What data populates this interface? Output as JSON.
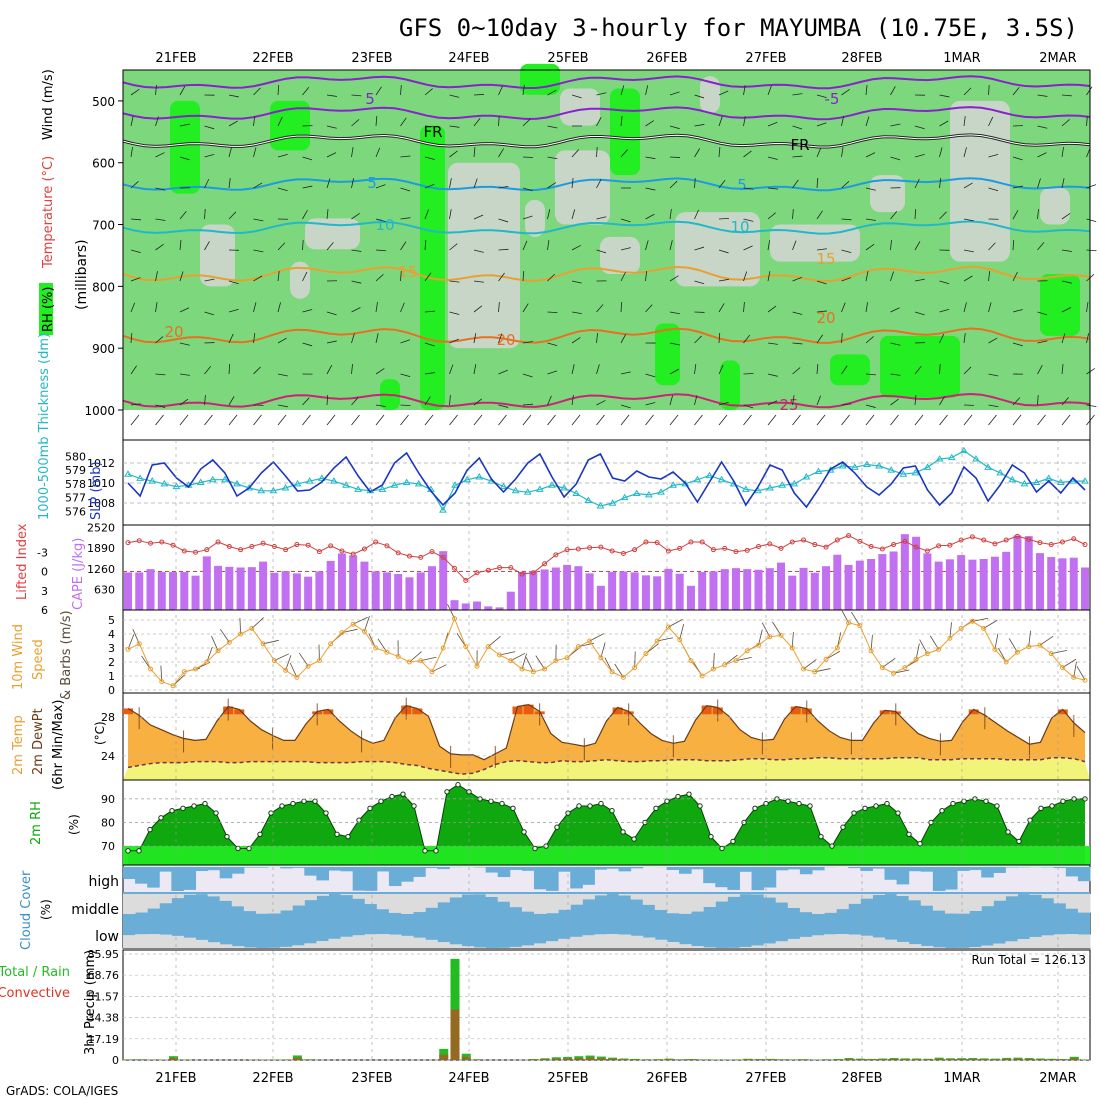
{
  "title": "GFS 0~10day 3-hourly for MAYUMBA (10.75E, 3.5S)",
  "credit": "GrADS: COLA/IGES",
  "dates": [
    "21FEB",
    "22FEB",
    "23FEB",
    "24FEB",
    "25FEB",
    "26FEB",
    "27FEB",
    "28FEB",
    "1MAR",
    "2MAR"
  ],
  "chart_data": [
    {
      "type": "heatmap",
      "panel": "upper-air",
      "ylabel": "(millibars)",
      "legend": [
        "RH (%)",
        "Temperature (°C)",
        "Wind (m/s)"
      ],
      "yticks": [
        500,
        600,
        700,
        800,
        900,
        1000
      ],
      "contour_labels": [
        "5",
        "-5",
        "FR",
        "5",
        "10",
        "15",
        "20",
        "25"
      ]
    },
    {
      "type": "line",
      "panel": "slp-thickness",
      "ylabel_left": "1000-500mb Thickness (dm)",
      "ylabel_right": "SLP (mb)",
      "yticks_thickness": [
        576,
        577,
        578,
        579,
        580
      ],
      "yticks_slp": [
        1008,
        1010,
        1012
      ],
      "slp": [
        1010.0,
        1008.7,
        1011.8,
        1012.0,
        1010.5,
        1009.6,
        1011.4,
        1012.3,
        1011.0,
        1008.7,
        1009.5,
        1011.0,
        1012.1,
        1010.7,
        1009.2,
        1009.3,
        1010.1,
        1011.5,
        1012.6,
        1010.7,
        1009.1,
        1009.8,
        1012.0,
        1013.0,
        1011.0,
        1009.2,
        1007.8,
        1009.0,
        1011.3,
        1012.5,
        1010.4,
        1009.1,
        1010.4,
        1012.0,
        1012.9,
        1010.6,
        1008.6,
        1009.9,
        1012.3,
        1012.9,
        1010.5,
        1010.2,
        1011.2,
        1010.6,
        1010.4,
        1011.1,
        1010.0,
        1008.1,
        1010.1,
        1012.1,
        1010.2,
        1007.8,
        1009.6,
        1011.8,
        1011.3,
        1009.0,
        1007.6,
        1009.4,
        1011.4,
        1012.1,
        1011.0,
        1009.6,
        1008.8,
        1009.9,
        1011.5,
        1011.7,
        1009.3,
        1007.8,
        1009.0,
        1011.6,
        1010.5,
        1008.2,
        1009.8,
        1011.8,
        1011.0,
        1009.1,
        1010.2,
        1009.0,
        1010.5,
        1009.3
      ],
      "thickness": [
        578.7,
        578.4,
        578.2,
        578.0,
        577.8,
        577.9,
        578.1,
        578.3,
        578.3,
        578.0,
        577.7,
        577.5,
        577.5,
        577.7,
        578.0,
        578.2,
        578.4,
        578.2,
        577.9,
        577.6,
        577.5,
        577.6,
        577.9,
        578.1,
        578.0,
        577.6,
        576.1,
        577.9,
        578.3,
        578.5,
        578.2,
        577.8,
        577.5,
        577.4,
        577.6,
        577.9,
        577.7,
        577.3,
        576.8,
        576.4,
        576.6,
        577.0,
        577.3,
        577.2,
        577.4,
        577.9,
        578.0,
        578.3,
        578.6,
        578.3,
        578.0,
        577.6,
        577.5,
        577.7,
        577.9,
        578.0,
        578.5,
        578.9,
        579.0,
        579.3,
        579.2,
        579.4,
        579.3,
        579.0,
        578.7,
        578.8,
        579.2,
        579.8,
        579.9,
        580.4,
        579.8,
        579.2,
        578.8,
        578.3,
        578.0,
        578.1,
        578.4,
        578.1,
        578.2,
        578.2
      ]
    },
    {
      "type": "bar",
      "panel": "cape-lifted-index",
      "ylabel_left": "Lifted Index",
      "ylabel_right": "CAPE (J/kg)",
      "yticks_li": [
        -3,
        0,
        3,
        6
      ],
      "yticks_cape": [
        630,
        1260,
        1890,
        2520
      ],
      "cape": [
        1150,
        1150,
        1250,
        1160,
        1160,
        1160,
        1050,
        1640,
        1350,
        1320,
        1300,
        1310,
        1480,
        1140,
        1190,
        1120,
        1020,
        1180,
        1500,
        1730,
        1670,
        1480,
        1180,
        1150,
        1100,
        1000,
        1150,
        1340,
        1800,
        300,
        200,
        260,
        110,
        80,
        560,
        1160,
        1190,
        1240,
        1300,
        1380,
        1340,
        1120,
        740,
        1160,
        1180,
        1150,
        1060,
        1030,
        1260,
        1110,
        740,
        1160,
        1180,
        1250,
        1280,
        1250,
        1230,
        1280,
        1450,
        1050,
        1290,
        1140,
        1340,
        1690,
        1380,
        1510,
        1560,
        1710,
        1790,
        2320,
        2240,
        1730,
        1480,
        1550,
        1680,
        1540,
        1560,
        1630,
        1780,
        2280,
        2260,
        1740,
        1620,
        1580,
        1600,
        1300
      ],
      "lifted_index": [
        -4.5,
        -4.8,
        -4.4,
        -4.6,
        -4.1,
        -3.2,
        -3.0,
        -3.4,
        -4.6,
        -3.9,
        -3.4,
        -3.9,
        -4.4,
        -3.9,
        -3.4,
        -4.2,
        -4.1,
        -3.1,
        -4.0,
        -3.2,
        -2.7,
        -3.5,
        -4.6,
        -4.0,
        -2.9,
        -2.4,
        -2.2,
        -3.1,
        -2.2,
        -0.5,
        1.4,
        0.2,
        -0.2,
        -0.6,
        -0.6,
        0.4,
        0.2,
        -1.2,
        -2.6,
        -3.4,
        -3.5,
        -3.7,
        -3.8,
        -3.2,
        -2.8,
        -3.4,
        -4.6,
        -4.5,
        -3.2,
        -3.6,
        -4.6,
        -4.6,
        -3.4,
        -3.6,
        -3.1,
        -3.3,
        -3.9,
        -4.3,
        -3.6,
        -4.6,
        -4.9,
        -4.2,
        -3.8,
        -4.9,
        -5.6,
        -4.7,
        -3.9,
        -3.5,
        -4.2,
        -4.7,
        -3.8,
        -3.2,
        -4.0,
        -4.1,
        -4.9,
        -5.4,
        -4.9,
        -4.3,
        -4.9,
        -5.5,
        -5.0,
        -4.5,
        -4.2,
        -4.6,
        -5.1,
        -4.2
      ]
    },
    {
      "type": "line",
      "panel": "10m-wind",
      "ylabel": "10m Wind Speed & Barbs (m/s)",
      "yticks": [
        0,
        1,
        2,
        3,
        4,
        5
      ],
      "wind_speed": [
        2.9,
        3.3,
        1.5,
        0.6,
        0.3,
        1.3,
        1.5,
        2.0,
        2.8,
        3.4,
        4.0,
        4.4,
        3.3,
        2.1,
        1.4,
        0.9,
        1.7,
        2.1,
        3.3,
        4.1,
        4.7,
        4.2,
        3.0,
        2.7,
        2.4,
        2.0,
        2.1,
        1.3,
        3.0,
        5.1,
        3.1,
        1.7,
        3.1,
        2.5,
        2.1,
        1.5,
        1.3,
        1.5,
        2.1,
        2.3,
        3.1,
        3.5,
        2.3,
        1.3,
        0.9,
        1.6,
        2.6,
        3.5,
        4.5,
        3.6,
        2.1,
        1.0,
        1.5,
        1.8,
        2.1,
        2.8,
        3.2,
        3.8,
        3.9,
        3.0,
        1.5,
        1.3,
        2.2,
        3.0,
        4.8,
        4.6,
        2.8,
        1.6,
        1.2,
        1.6,
        2.2,
        2.6,
        2.9,
        3.7,
        4.4,
        4.9,
        4.4,
        2.9,
        2.0,
        2.7,
        3.1,
        3.2,
        2.6,
        1.6,
        0.9,
        0.7
      ]
    },
    {
      "type": "area",
      "panel": "2m-temp-dewpoint",
      "ylabel": "2m Temp / 2m DewPt (6hr Min/Max) (°C)",
      "yticks": [
        24,
        28
      ],
      "temp": [
        28.9,
        28.2,
        27.2,
        26.7,
        26.2,
        25.8,
        25.6,
        25.7,
        27.6,
        29.1,
        28.8,
        27.6,
        26.7,
        26.1,
        25.6,
        25.6,
        27.3,
        28.6,
        28.8,
        27.6,
        26.6,
        25.8,
        25.3,
        25.6,
        27.9,
        29.2,
        28.9,
        28.1,
        25.0,
        24.2,
        24.1,
        24.1,
        23.6,
        24.2,
        24.8,
        29.1,
        29.3,
        28.6,
        26.3,
        25.4,
        25.2,
        25.0,
        25.3,
        27.6,
        29.0,
        28.6,
        27.4,
        26.3,
        25.6,
        25.3,
        25.5,
        27.7,
        29.2,
        29.0,
        28.1,
        26.7,
        25.9,
        25.6,
        25.7,
        27.8,
        29.1,
        28.9,
        27.6,
        26.6,
        25.9,
        25.6,
        25.6,
        27.4,
        28.7,
        28.6,
        27.4,
        26.3,
        25.8,
        25.5,
        25.6,
        27.5,
        28.8,
        28.2,
        27.4,
        26.6,
        25.9,
        25.2,
        25.4,
        27.9,
        28.8,
        27.4,
        26.4
      ],
      "dewpoint": [
        22.8,
        23.0,
        23.2,
        23.3,
        23.3,
        23.3,
        23.4,
        23.4,
        23.4,
        23.3,
        23.3,
        23.4,
        23.4,
        23.4,
        23.4,
        23.4,
        23.4,
        23.3,
        23.3,
        23.3,
        23.3,
        23.4,
        23.4,
        23.4,
        23.3,
        23.1,
        23.0,
        22.7,
        22.5,
        22.3,
        22.1,
        22.2,
        22.6,
        23.1,
        23.4,
        23.5,
        23.4,
        23.3,
        23.3,
        23.5,
        23.4,
        23.4,
        23.5,
        23.6,
        23.5,
        23.4,
        23.4,
        23.5,
        23.5,
        23.6,
        23.6,
        23.6,
        23.5,
        23.5,
        23.5,
        23.6,
        23.7,
        23.7,
        23.6,
        23.6,
        23.7,
        23.7,
        23.8,
        23.8,
        23.7,
        23.7,
        23.7,
        23.7,
        23.7,
        23.8,
        23.8,
        23.8,
        23.6,
        23.6,
        23.6,
        23.7,
        23.7,
        23.7,
        23.7,
        23.6,
        23.6,
        23.6,
        23.6,
        23.8,
        23.8,
        23.7,
        23.4
      ]
    },
    {
      "type": "area",
      "panel": "2m-rh",
      "ylabel": "2m RH (%)",
      "yticks": [
        70,
        80,
        90
      ],
      "rh": [
        68,
        68,
        77,
        82,
        85,
        86,
        87,
        88,
        84,
        74,
        69,
        69,
        75,
        84,
        87,
        88,
        89,
        89,
        84,
        75,
        74,
        81,
        86,
        89,
        91,
        92,
        87,
        68,
        68,
        93,
        96,
        93,
        90,
        89,
        88,
        86,
        76,
        69,
        70,
        78,
        84,
        87,
        87,
        88,
        85,
        76,
        73,
        80,
        86,
        89,
        91,
        92,
        87,
        74,
        69,
        72,
        80,
        86,
        88,
        90,
        89,
        88,
        87,
        74,
        70,
        78,
        84,
        86,
        87,
        88,
        84,
        75,
        71,
        80,
        85,
        88,
        89,
        90,
        89,
        87,
        76,
        72,
        81,
        86,
        87,
        89,
        90,
        90
      ]
    },
    {
      "type": "heatmap",
      "panel": "cloud-cover",
      "ylabel": "Cloud Cover (%)",
      "yticks": [
        "high",
        "middle",
        "low"
      ]
    },
    {
      "type": "bar",
      "panel": "precipitation",
      "ylabel": "3hr Precip (mm)",
      "legend": [
        "Total / Rain",
        "Convective"
      ],
      "yticks": [
        0,
        17.19,
        34.38,
        51.57,
        68.76,
        85.95
      ],
      "ylim": [
        0,
        85.95
      ],
      "run_total_label": "Run Total = 126.13",
      "precip": [
        0.5,
        0.6,
        0.3,
        0.4,
        3.1,
        0.2,
        0,
        0,
        0,
        0,
        0,
        0.2,
        0.4,
        0.3,
        0.5,
        3.7,
        0.6,
        0.1,
        0,
        0,
        0,
        0,
        0,
        0,
        0,
        0,
        0,
        0,
        9.0,
        82.0,
        5.1,
        0.6,
        0,
        0,
        0,
        0.1,
        0.8,
        1.4,
        2.2,
        2.5,
        3.1,
        3.6,
        2.8,
        1.9,
        1.2,
        0.9,
        0.6,
        0.7,
        1.1,
        0.6,
        0.8,
        0.5,
        0.4,
        0.3,
        0.5,
        1.0,
        0.8,
        0.9,
        0.6,
        0.5,
        0.7,
        0.4,
        0.6,
        0.8,
        1.6,
        1.1,
        0.9,
        1.2,
        1.6,
        1.3,
        1.2,
        1.0,
        1.9,
        1.4,
        1.5,
        1.6,
        1.3,
        1.1,
        1.7,
        1.9,
        1.6,
        1.2,
        1.0,
        0.8,
        2.6,
        0.4
      ]
    }
  ]
}
